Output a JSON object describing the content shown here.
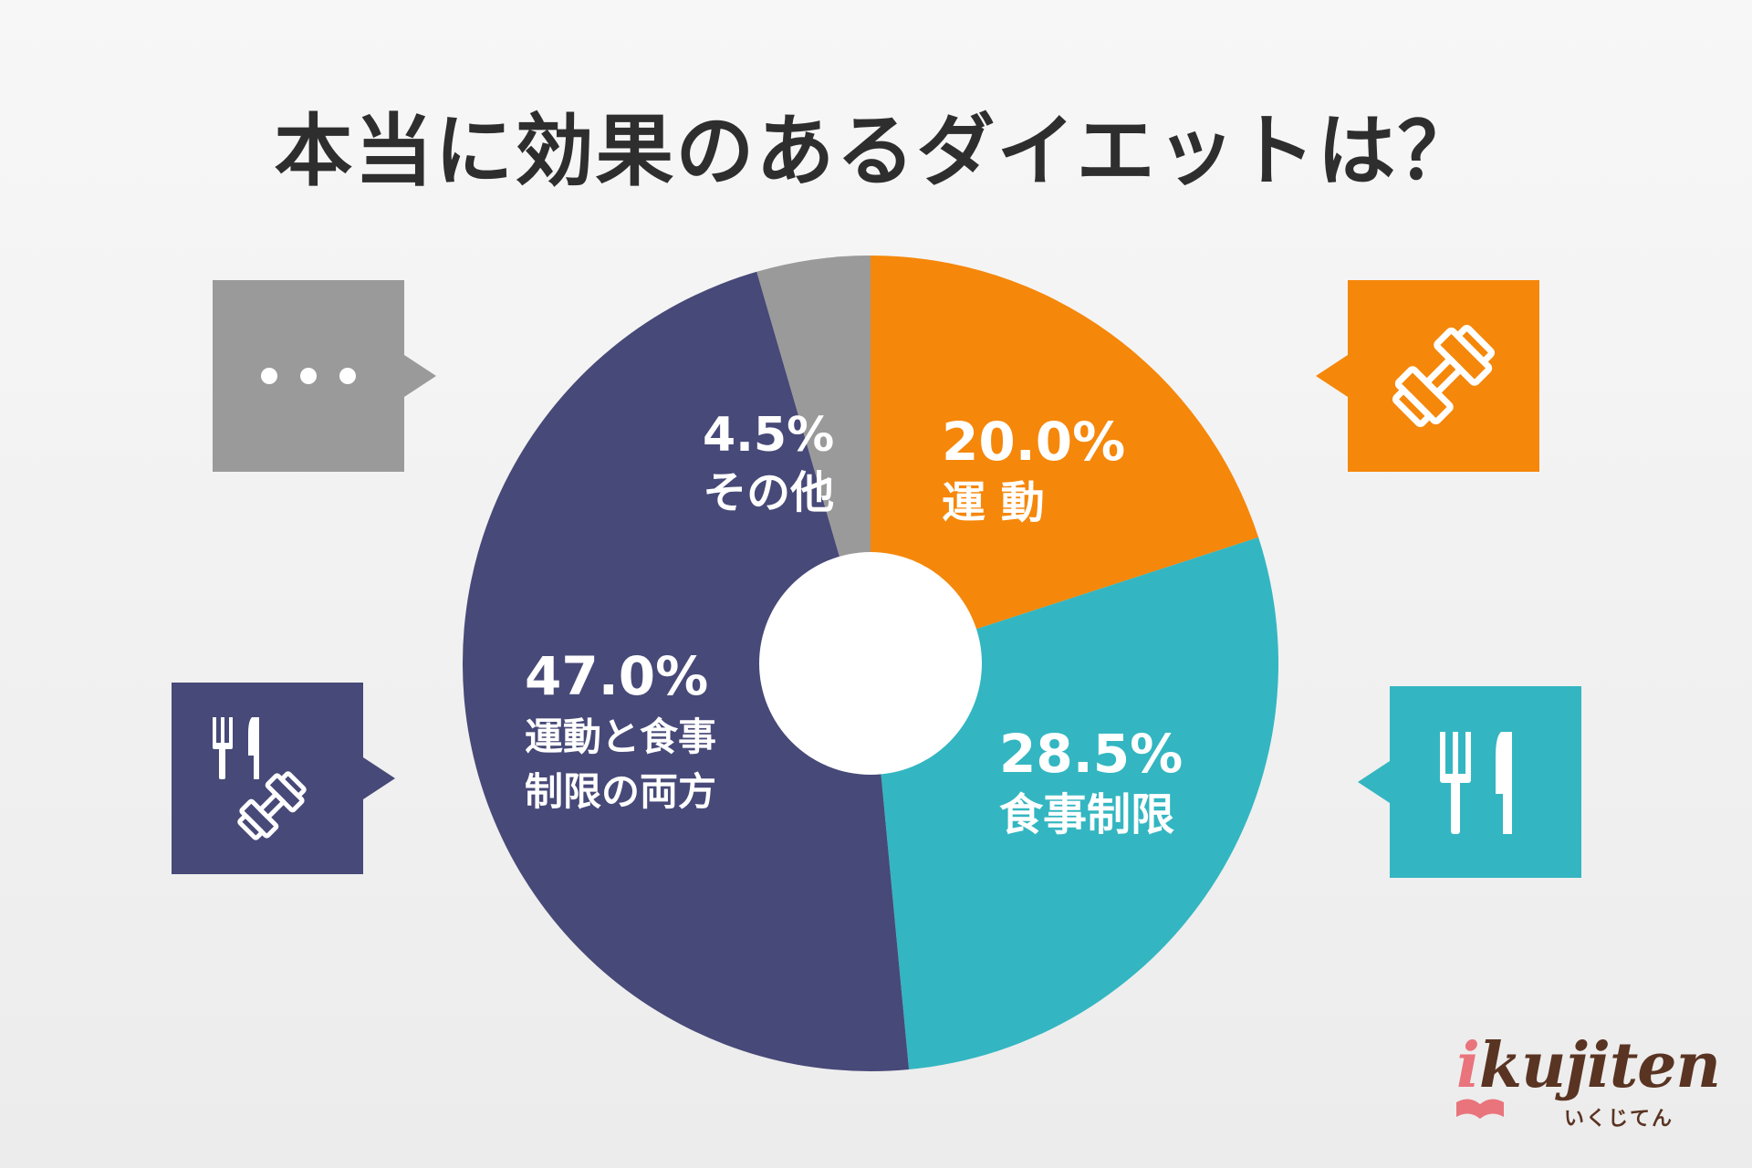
{
  "title": "本当に効果のあるダイエットは？",
  "chart_data": {
    "type": "pie",
    "donut": true,
    "slices": [
      {
        "id": "exercise",
        "label": "運 動",
        "percent_text": "20.0%",
        "value": 20.0,
        "color": "#f5870a"
      },
      {
        "id": "diet",
        "label": "食事制限",
        "percent_text": "28.5%",
        "value": 28.5,
        "color": "#33b6c1"
      },
      {
        "id": "both",
        "label": "運動と食事制限の両方",
        "label_lines": [
          "運動と食事",
          "制限の両方"
        ],
        "percent_text": "47.0%",
        "value": 47.0,
        "color": "#474978"
      },
      {
        "id": "other",
        "label": "その他",
        "percent_text": "4.5%",
        "value": 4.5,
        "color": "#9a9a9a"
      }
    ]
  },
  "callouts": {
    "other": {
      "icon": "ellipsis-icon",
      "color": "#9a9a9a"
    },
    "exercise": {
      "icon": "dumbbell-icon",
      "color": "#f5870a"
    },
    "diet": {
      "icon": "fork-knife-icon",
      "color": "#33b6c1"
    },
    "both": {
      "icon": "fork-knife-dumbbell-icon",
      "color": "#474978"
    }
  },
  "logo": {
    "brand": "ikujiten",
    "brand_i": "i",
    "brand_rest": "kujiten",
    "kana": "いくじてん"
  }
}
